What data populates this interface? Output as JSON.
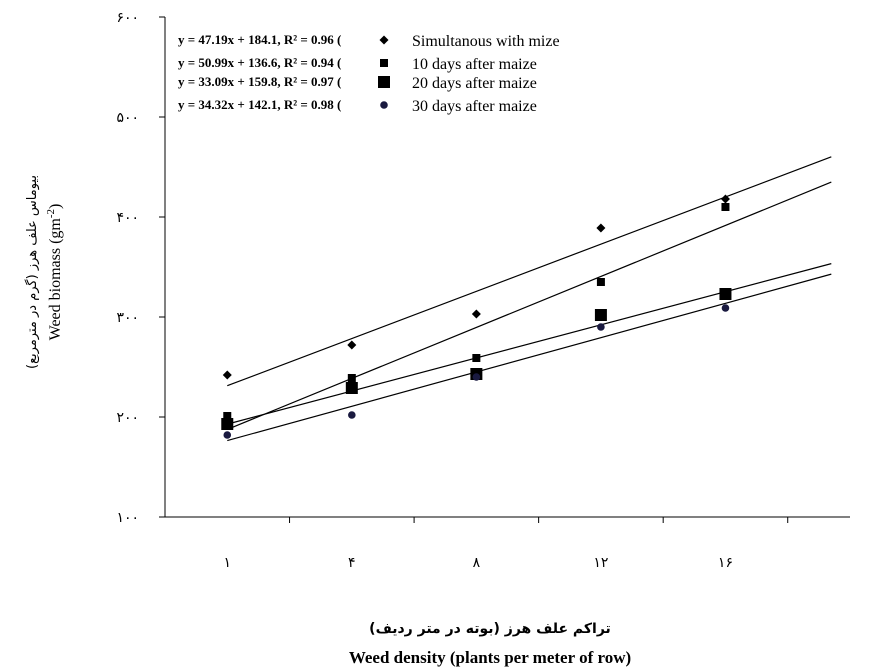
{
  "chart_data": {
    "type": "scatter",
    "x_tick_labels": [
      "۱",
      "۴",
      "۸",
      "۱۲",
      "۱۶"
    ],
    "y_tick_labels": [
      "۱۰۰",
      "۲۰۰",
      "۳۰۰",
      "۴۰۰",
      "۵۰۰",
      "۶۰۰"
    ],
    "y_ticks": [
      100,
      200,
      300,
      400,
      500,
      600
    ],
    "ylim": [
      100,
      600
    ],
    "x_positions": [
      1,
      2,
      3,
      4,
      5
    ],
    "xlim": [
      0.5,
      6
    ],
    "xlabel_fa": "تراکم علف هرز (بوته در متر ردیف)",
    "xlabel_en": "Weed density (plants per meter of row)",
    "ylabel_fa": "بیوماس علف هرز (گرم در مترمربع)",
    "ylabel_en_main": "Weed biomass (gm",
    "ylabel_en_sup": "-2",
    "ylabel_en_close": ")",
    "series": [
      {
        "name": "Simultanous with mize",
        "equation": "y = 47.19x + 184.1, R² = 0.96 (",
        "marker": "diamond",
        "values": [
          242,
          272,
          303,
          389,
          418
        ],
        "trend": {
          "slope": 47.19,
          "intercept": 184.1
        }
      },
      {
        "name": "10 days after maize",
        "equation": "y = 50.99x + 136.6, R² = 0.94 (",
        "marker": "small-square",
        "values": [
          201,
          239,
          259,
          335,
          410
        ],
        "trend": {
          "slope": 50.99,
          "intercept": 136.6
        }
      },
      {
        "name": "20 days after maize",
        "equation": "y = 33.09x + 159.8, R² = 0.97 (",
        "marker": "large-square",
        "values": [
          193,
          229,
          243,
          302,
          323
        ],
        "trend": {
          "slope": 33.09,
          "intercept": 159.8
        }
      },
      {
        "name": "30 days after maize",
        "equation": "y = 34.32x + 142.1, R² = 0.98 (",
        "marker": "circle",
        "values": [
          182,
          202,
          240,
          290,
          309
        ],
        "trend": {
          "slope": 34.32,
          "intercept": 142.1
        }
      }
    ],
    "colors": {
      "marker": "#000000",
      "circle_fill": "#1a1a40",
      "line": "#000000"
    }
  }
}
